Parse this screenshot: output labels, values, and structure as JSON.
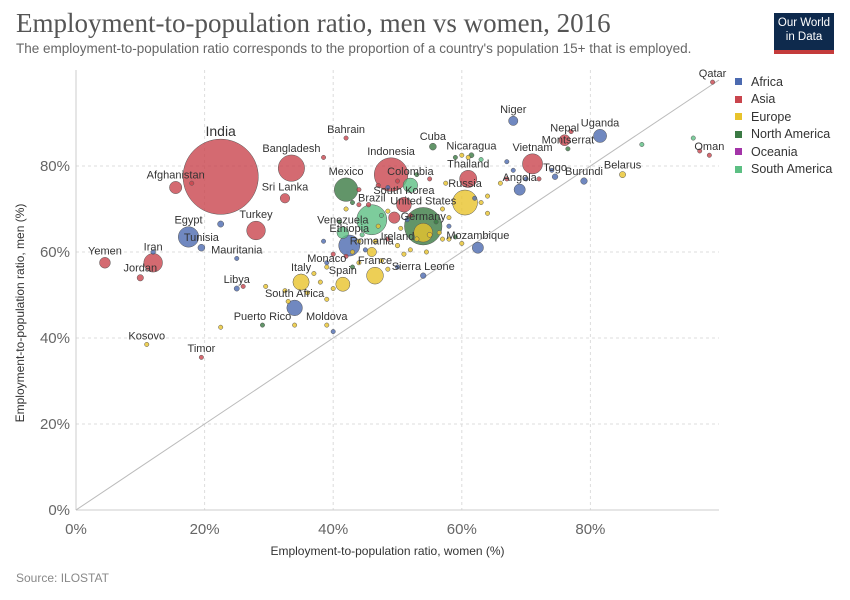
{
  "header": {
    "title": "Employment-to-population ratio, men vs women, 2016",
    "subtitle": "The employment-to-population ratio corresponds to the proportion of a country's population 15+ that is employed.",
    "logo_line1": "Our World",
    "logo_line2": "in Data"
  },
  "footer": {
    "source": "Source: ILOSTAT"
  },
  "colors": {
    "Africa": "#4c6ab0",
    "Asia": "#c9454d",
    "Europe": "#e8c32c",
    "North America": "#3b7a44",
    "Oceania": "#a334a8",
    "South America": "#5cbf83"
  },
  "chart_data": {
    "type": "scatter",
    "xlabel": "Employment-to-population ratio, women (%)",
    "ylabel": "Employment-to-population ratio, men (%)",
    "xlim": [
      0,
      100
    ],
    "ylim": [
      0,
      100
    ],
    "x_ticks": [
      0,
      20,
      40,
      60,
      80
    ],
    "y_ticks": [
      0,
      20,
      40,
      60,
      80
    ],
    "x_tick_labels": [
      "0%",
      "20%",
      "40%",
      "60%",
      "80%"
    ],
    "y_tick_labels": [
      "0%",
      "20%",
      "40%",
      "60%",
      "80%"
    ],
    "grid": true,
    "legend_position": "right",
    "legend": [
      "Africa",
      "Asia",
      "Europe",
      "North America",
      "Oceania",
      "South America"
    ],
    "points": [
      {
        "label": "India",
        "x": 22.5,
        "y": 77.5,
        "group": "Asia",
        "size": 1300
      },
      {
        "label": "Bahrain",
        "x": 42,
        "y": 86.5,
        "group": "Asia",
        "size": 1
      },
      {
        "label": "Bangladesh",
        "x": 33.5,
        "y": 79.5,
        "group": "Asia",
        "size": 160
      },
      {
        "label": "Indonesia",
        "x": 49,
        "y": 78,
        "group": "Asia",
        "size": 260
      },
      {
        "label": "Cuba",
        "x": 55.5,
        "y": 84.5,
        "group": "North America",
        "size": 11
      },
      {
        "label": "Nicaragua",
        "x": 61.5,
        "y": 82.5,
        "group": "North America",
        "size": 6
      },
      {
        "label": "Niger",
        "x": 68,
        "y": 90.5,
        "group": "Africa",
        "size": 20
      },
      {
        "label": "Uganda",
        "x": 81.5,
        "y": 87,
        "group": "Africa",
        "size": 40
      },
      {
        "label": "Nepal",
        "x": 76,
        "y": 86,
        "group": "Asia",
        "size": 28
      },
      {
        "label": "Qatar",
        "x": 99,
        "y": 99.5,
        "group": "Asia",
        "size": 2.5
      },
      {
        "label": "Oman",
        "x": 98.5,
        "y": 82.5,
        "group": "Asia",
        "size": 4.5
      },
      {
        "label": "Vietnam",
        "x": 71,
        "y": 80.5,
        "group": "Asia",
        "size": 93
      },
      {
        "label": "Montserrat",
        "x": 76.5,
        "y": 84,
        "group": "North America",
        "size": 1
      },
      {
        "label": "Belarus",
        "x": 85,
        "y": 78,
        "group": "Europe",
        "size": 9
      },
      {
        "label": "Thailand",
        "x": 61,
        "y": 77,
        "group": "Asia",
        "size": 68
      },
      {
        "label": "Togo",
        "x": 74.5,
        "y": 77.5,
        "group": "Africa",
        "size": 7.5
      },
      {
        "label": "Burundi",
        "x": 79,
        "y": 76.5,
        "group": "Africa",
        "size": 10
      },
      {
        "label": "Angola",
        "x": 69,
        "y": 74.5,
        "group": "Africa",
        "size": 29
      },
      {
        "label": "Afghanistan",
        "x": 15.5,
        "y": 75,
        "group": "Asia",
        "size": 35
      },
      {
        "label": "Mexico",
        "x": 42,
        "y": 74.5,
        "group": "North America",
        "size": 127
      },
      {
        "label": "Colombia",
        "x": 52,
        "y": 75.5,
        "group": "South America",
        "size": 49
      },
      {
        "label": "Sri Lanka",
        "x": 32.5,
        "y": 72.5,
        "group": "Asia",
        "size": 21
      },
      {
        "label": "South Korea",
        "x": 51,
        "y": 71,
        "group": "Asia",
        "size": 51
      },
      {
        "label": "Russia",
        "x": 60.5,
        "y": 71.5,
        "group": "Europe",
        "size": 144
      },
      {
        "label": "United States",
        "x": 54,
        "y": 66,
        "group": "North America",
        "size": 323
      },
      {
        "label": "Brazil",
        "x": 46,
        "y": 67.5,
        "group": "South America",
        "size": 208
      },
      {
        "label": "Venezuela",
        "x": 41.5,
        "y": 64.5,
        "group": "South America",
        "size": 32
      },
      {
        "label": "Turkey",
        "x": 28,
        "y": 65,
        "group": "Asia",
        "size": 80
      },
      {
        "label": "Egypt",
        "x": 17.5,
        "y": 63.5,
        "group": "Africa",
        "size": 96
      },
      {
        "label": "Tunisia",
        "x": 19.5,
        "y": 61,
        "group": "Africa",
        "size": 11
      },
      {
        "label": "Ethiopia",
        "x": 42.5,
        "y": 61.5,
        "group": "Africa",
        "size": 102
      },
      {
        "label": "Germany",
        "x": 54,
        "y": 64.5,
        "group": "Europe",
        "size": 82
      },
      {
        "label": "Ireland",
        "x": 50,
        "y": 61.5,
        "group": "Europe",
        "size": 5
      },
      {
        "label": "Romania",
        "x": 46,
        "y": 60,
        "group": "Europe",
        "size": 20
      },
      {
        "label": "Mozambique",
        "x": 62.5,
        "y": 61,
        "group": "Africa",
        "size": 29
      },
      {
        "label": "Iran",
        "x": 12,
        "y": 57.5,
        "group": "Asia",
        "size": 80
      },
      {
        "label": "Yemen",
        "x": 4.5,
        "y": 57.5,
        "group": "Asia",
        "size": 27
      },
      {
        "label": "Jordan",
        "x": 10,
        "y": 54,
        "group": "Asia",
        "size": 9.5
      },
      {
        "label": "Mauritania",
        "x": 25,
        "y": 58.5,
        "group": "Africa",
        "size": 4.3
      },
      {
        "label": "Monaco",
        "x": 39,
        "y": 56.5,
        "group": "Europe",
        "size": 1
      },
      {
        "label": "Italy",
        "x": 35,
        "y": 53,
        "group": "Europe",
        "size": 61
      },
      {
        "label": "Spain",
        "x": 41.5,
        "y": 52.5,
        "group": "Europe",
        "size": 46
      },
      {
        "label": "France",
        "x": 46.5,
        "y": 54.5,
        "group": "Europe",
        "size": 65
      },
      {
        "label": "Sierra Leone",
        "x": 54,
        "y": 54.5,
        "group": "Africa",
        "size": 7.4
      },
      {
        "label": "Libya",
        "x": 25,
        "y": 51.5,
        "group": "Africa",
        "size": 6.3
      },
      {
        "label": "South Africa",
        "x": 34,
        "y": 47,
        "group": "Africa",
        "size": 56
      },
      {
        "label": "Puerto Rico",
        "x": 29,
        "y": 43,
        "group": "North America",
        "size": 3.4
      },
      {
        "label": "Moldova",
        "x": 39,
        "y": 43,
        "group": "Europe",
        "size": 3.5
      },
      {
        "label": "Kosovo",
        "x": 11,
        "y": 38.5,
        "group": "Europe",
        "size": 1.8
      },
      {
        "label": "Timor",
        "x": 19.5,
        "y": 35.5,
        "group": "Asia",
        "size": 1.2
      },
      {
        "x": 12,
        "y": 60,
        "group": "Africa",
        "size": 5
      },
      {
        "x": 18,
        "y": 76,
        "group": "Asia",
        "size": 3
      },
      {
        "x": 22.5,
        "y": 66.5,
        "group": "Africa",
        "size": 9
      },
      {
        "x": 38.5,
        "y": 82,
        "group": "Asia",
        "size": 1
      },
      {
        "x": 44,
        "y": 74.5,
        "group": "Asia",
        "size": 1.5
      },
      {
        "x": 44,
        "y": 71,
        "group": "Asia",
        "size": 3
      },
      {
        "x": 45.5,
        "y": 71,
        "group": "Asia",
        "size": 5
      },
      {
        "x": 43,
        "y": 71.5,
        "group": "North America",
        "size": 2
      },
      {
        "x": 47,
        "y": 75.5,
        "group": "Asia",
        "size": 3
      },
      {
        "x": 48.5,
        "y": 75,
        "group": "Africa",
        "size": 2
      },
      {
        "x": 50,
        "y": 76.5,
        "group": "Asia",
        "size": 2
      },
      {
        "x": 53,
        "y": 78,
        "group": "North America",
        "size": 2
      },
      {
        "x": 55,
        "y": 77,
        "group": "Asia",
        "size": 3
      },
      {
        "x": 57.5,
        "y": 76,
        "group": "Europe",
        "size": 2
      },
      {
        "x": 59,
        "y": 82,
        "group": "North America",
        "size": 2
      },
      {
        "x": 61,
        "y": 82,
        "group": "Europe",
        "size": 1
      },
      {
        "x": 63,
        "y": 81.5,
        "group": "South America",
        "size": 2
      },
      {
        "x": 66,
        "y": 76,
        "group": "Europe",
        "size": 2
      },
      {
        "x": 67,
        "y": 77,
        "group": "Asia",
        "size": 2
      },
      {
        "x": 67,
        "y": 81,
        "group": "Africa",
        "size": 2
      },
      {
        "x": 68,
        "y": 79,
        "group": "Africa",
        "size": 3
      },
      {
        "x": 70,
        "y": 77,
        "group": "Africa",
        "size": 2
      },
      {
        "x": 72,
        "y": 77,
        "group": "Asia",
        "size": 2
      },
      {
        "x": 74,
        "y": 79,
        "group": "Africa",
        "size": 2
      },
      {
        "x": 77,
        "y": 88,
        "group": "Asia",
        "size": 3
      },
      {
        "x": 88,
        "y": 85,
        "group": "South America",
        "size": 1
      },
      {
        "x": 96,
        "y": 86.5,
        "group": "South America",
        "size": 1
      },
      {
        "x": 97,
        "y": 83.5,
        "group": "Asia",
        "size": 2
      },
      {
        "x": 60,
        "y": 82.5,
        "group": "Europe",
        "size": 1
      },
      {
        "x": 62,
        "y": 72.5,
        "group": "Africa",
        "size": 3
      },
      {
        "x": 63,
        "y": 71.5,
        "group": "Europe",
        "size": 2
      },
      {
        "x": 64,
        "y": 69,
        "group": "Europe",
        "size": 3
      },
      {
        "x": 64,
        "y": 73,
        "group": "Europe",
        "size": 2
      },
      {
        "x": 57,
        "y": 70,
        "group": "Europe",
        "size": 4
      },
      {
        "x": 58,
        "y": 68,
        "group": "Europe",
        "size": 3
      },
      {
        "x": 56,
        "y": 67,
        "group": "North America",
        "size": 4
      },
      {
        "x": 55,
        "y": 64,
        "group": "Europe",
        "size": 6
      },
      {
        "x": 56.5,
        "y": 64.5,
        "group": "Europe",
        "size": 4
      },
      {
        "x": 57,
        "y": 63,
        "group": "Europe",
        "size": 3
      },
      {
        "x": 58,
        "y": 66,
        "group": "Africa",
        "size": 3
      },
      {
        "x": 53,
        "y": 63,
        "group": "Europe",
        "size": 5
      },
      {
        "x": 51.5,
        "y": 67.5,
        "group": "Africa",
        "size": 3
      },
      {
        "x": 52,
        "y": 68.5,
        "group": "Asia",
        "size": 3
      },
      {
        "x": 50.5,
        "y": 65.5,
        "group": "Europe",
        "size": 4
      },
      {
        "x": 49.5,
        "y": 68,
        "group": "Asia",
        "size": 30
      },
      {
        "x": 48.5,
        "y": 69.5,
        "group": "Europe",
        "size": 4
      },
      {
        "x": 48.5,
        "y": 63,
        "group": "Asia",
        "size": 4
      },
      {
        "x": 47.5,
        "y": 68.5,
        "group": "South America",
        "size": 4
      },
      {
        "x": 47,
        "y": 66,
        "group": "Europe",
        "size": 3
      },
      {
        "x": 44.5,
        "y": 64,
        "group": "South America",
        "size": 3
      },
      {
        "x": 44,
        "y": 62.5,
        "group": "Europe",
        "size": 3
      },
      {
        "x": 45,
        "y": 60.5,
        "group": "Africa",
        "size": 3
      },
      {
        "x": 46.5,
        "y": 62.5,
        "group": "Europe",
        "size": 2
      },
      {
        "x": 52,
        "y": 60.5,
        "group": "Europe",
        "size": 3
      },
      {
        "x": 51,
        "y": 59.5,
        "group": "Europe",
        "size": 2
      },
      {
        "x": 54.5,
        "y": 60,
        "group": "Europe",
        "size": 2
      },
      {
        "x": 58,
        "y": 63,
        "group": "Europe",
        "size": 2
      },
      {
        "x": 59,
        "y": 63.5,
        "group": "North America",
        "size": 2
      },
      {
        "x": 60,
        "y": 62,
        "group": "Europe",
        "size": 2
      },
      {
        "x": 41,
        "y": 67,
        "group": "North America",
        "size": 2
      },
      {
        "x": 42,
        "y": 70,
        "group": "Europe",
        "size": 2
      },
      {
        "x": 38.5,
        "y": 62.5,
        "group": "Africa",
        "size": 4
      },
      {
        "x": 40,
        "y": 59.5,
        "group": "Asia",
        "size": 2
      },
      {
        "x": 42,
        "y": 59,
        "group": "Asia",
        "size": 3
      },
      {
        "x": 43,
        "y": 60,
        "group": "Europe",
        "size": 2
      },
      {
        "x": 39,
        "y": 57.5,
        "group": "Africa",
        "size": 2
      },
      {
        "x": 43,
        "y": 56.5,
        "group": "North America",
        "size": 2
      },
      {
        "x": 44,
        "y": 57.5,
        "group": "Europe",
        "size": 2
      },
      {
        "x": 47.5,
        "y": 58,
        "group": "Europe",
        "size": 2
      },
      {
        "x": 48.5,
        "y": 56,
        "group": "Europe",
        "size": 2
      },
      {
        "x": 50,
        "y": 56.5,
        "group": "Africa",
        "size": 2
      },
      {
        "x": 37,
        "y": 55,
        "group": "Europe",
        "size": 3
      },
      {
        "x": 38,
        "y": 53,
        "group": "Europe",
        "size": 3
      },
      {
        "x": 40,
        "y": 51.5,
        "group": "Europe",
        "size": 3
      },
      {
        "x": 36,
        "y": 50.5,
        "group": "Europe",
        "size": 3
      },
      {
        "x": 33,
        "y": 48.5,
        "group": "Europe",
        "size": 3
      },
      {
        "x": 32.5,
        "y": 51,
        "group": "Europe",
        "size": 3
      },
      {
        "x": 39,
        "y": 49,
        "group": "Europe",
        "size": 2
      },
      {
        "x": 26,
        "y": 52,
        "group": "Asia",
        "size": 2
      },
      {
        "x": 29.5,
        "y": 52,
        "group": "Europe",
        "size": 2
      },
      {
        "x": 34,
        "y": 43,
        "group": "Europe",
        "size": 2
      },
      {
        "x": 40,
        "y": 41.5,
        "group": "Africa",
        "size": 2
      },
      {
        "x": 22.5,
        "y": 42.5,
        "group": "Europe",
        "size": 2
      }
    ]
  }
}
